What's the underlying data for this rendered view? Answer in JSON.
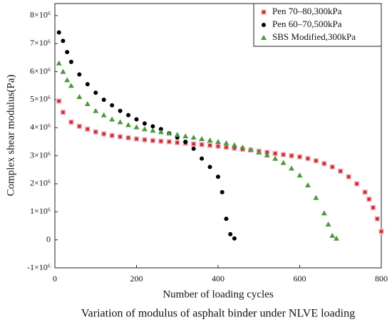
{
  "chart_data": {
    "type": "scatter",
    "title": "Variation of modulus of asphalt binder under NLVE loading",
    "x_label": "Number of loading cycles",
    "y_label": "Complex shear modulus(Pa)",
    "xlim": [
      0,
      800
    ],
    "xticks": [
      0,
      200,
      400,
      600,
      800
    ],
    "ylim": [
      -1000000,
      8430000
    ],
    "yticks": [
      {
        "value": -1000000,
        "label": "-1×10⁶"
      },
      {
        "value": 0,
        "label": "0"
      },
      {
        "value": 1000000,
        "label": "1×10⁶"
      },
      {
        "value": 2000000,
        "label": "2×10⁶"
      },
      {
        "value": 3000000,
        "label": "3×10⁶"
      },
      {
        "value": 4000000,
        "label": "4×10⁶"
      },
      {
        "value": 5000000,
        "label": "5×10⁶"
      },
      {
        "value": 6000000,
        "label": "6×10⁶"
      },
      {
        "value": 7000000,
        "label": "7×10⁶"
      },
      {
        "value": 8000000,
        "label": "8×10⁶"
      }
    ],
    "legend": "upper right",
    "series": [
      {
        "name": "Pen 70–80,300kPa",
        "color": "#c8302a",
        "marker": "square",
        "x": [
          10,
          20,
          40,
          60,
          80,
          100,
          120,
          140,
          160,
          180,
          200,
          220,
          240,
          260,
          280,
          300,
          320,
          340,
          360,
          380,
          400,
          420,
          440,
          460,
          480,
          500,
          520,
          540,
          560,
          580,
          600,
          620,
          640,
          660,
          680,
          700,
          720,
          740,
          760,
          770,
          780,
          790,
          800
        ],
        "values": [
          4950000,
          4550000,
          4200000,
          4050000,
          3950000,
          3850000,
          3780000,
          3720000,
          3680000,
          3640000,
          3600000,
          3570000,
          3540000,
          3520000,
          3500000,
          3470000,
          3450000,
          3420000,
          3400000,
          3370000,
          3340000,
          3300000,
          3270000,
          3230000,
          3200000,
          3160000,
          3120000,
          3080000,
          3040000,
          3000000,
          2960000,
          2900000,
          2820000,
          2720000,
          2600000,
          2450000,
          2250000,
          2000000,
          1700000,
          1450000,
          1150000,
          750000,
          300000
        ]
      },
      {
        "name": "Pen 60–70,500kPa",
        "color": "#000000",
        "marker": "circle",
        "x": [
          10,
          20,
          30,
          40,
          60,
          80,
          100,
          120,
          140,
          160,
          180,
          200,
          220,
          240,
          260,
          280,
          300,
          320,
          340,
          360,
          380,
          400,
          410,
          420,
          430,
          440
        ],
        "values": [
          7400000,
          7100000,
          6700000,
          6350000,
          5900000,
          5550000,
          5250000,
          5000000,
          4800000,
          4600000,
          4450000,
          4300000,
          4150000,
          4050000,
          3950000,
          3800000,
          3650000,
          3500000,
          3250000,
          2900000,
          2600000,
          2250000,
          1700000,
          750000,
          200000,
          50000
        ]
      },
      {
        "name": "SBS Modified,300kPa",
        "color": "#4a9a3a",
        "marker": "triangle",
        "x": [
          10,
          20,
          30,
          40,
          60,
          80,
          100,
          120,
          140,
          160,
          180,
          200,
          220,
          240,
          260,
          280,
          300,
          320,
          340,
          360,
          380,
          400,
          420,
          440,
          460,
          480,
          500,
          520,
          540,
          560,
          580,
          600,
          620,
          640,
          660,
          670,
          680,
          690
        ],
        "values": [
          6300000,
          6000000,
          5700000,
          5500000,
          5100000,
          4850000,
          4600000,
          4450000,
          4300000,
          4200000,
          4100000,
          4020000,
          3950000,
          3900000,
          3850000,
          3800000,
          3750000,
          3700000,
          3650000,
          3600000,
          3550000,
          3500000,
          3450000,
          3380000,
          3300000,
          3220000,
          3120000,
          3020000,
          2900000,
          2750000,
          2550000,
          2300000,
          1950000,
          1500000,
          950000,
          550000,
          150000,
          50000
        ]
      }
    ]
  }
}
